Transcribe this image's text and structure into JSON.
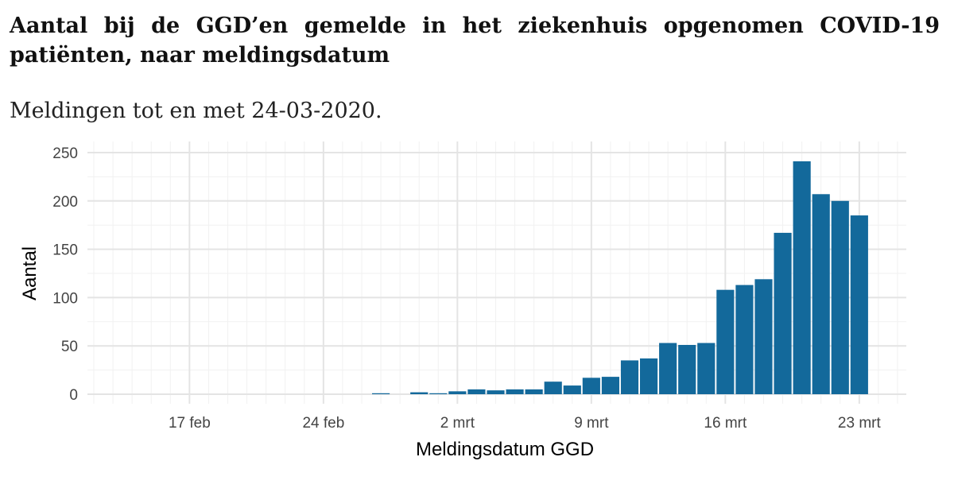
{
  "title": "Aantal bij de GGD’en gemelde in het ziekenhuis opgenomen COVID-19 patiënten, naar meldingsdatum",
  "subtitle": "Meldingen tot en met 24-03-2020.",
  "colors": {
    "bar": "#13699b",
    "grid_major": "#e4e4e4",
    "grid_minor": "#f1f1f1"
  },
  "chart_data": {
    "type": "bar",
    "title": "Aantal bij de GGD’en gemelde in het ziekenhuis opgenomen COVID-19 patiënten, naar meldingsdatum",
    "xlabel": "Meldingsdatum GGD",
    "ylabel": "Aantal",
    "ylim": [
      0,
      250
    ],
    "yticks": [
      0,
      50,
      100,
      150,
      200,
      250
    ],
    "xrange": [
      "2020-02-12",
      "2020-03-25"
    ],
    "xticks": [
      {
        "date": "2020-02-17",
        "label": "17 feb"
      },
      {
        "date": "2020-02-24",
        "label": "24 feb"
      },
      {
        "date": "2020-03-02",
        "label": "2 mrt"
      },
      {
        "date": "2020-03-09",
        "label": "9 mrt"
      },
      {
        "date": "2020-03-16",
        "label": "16 mrt"
      },
      {
        "date": "2020-03-23",
        "label": "23 mrt"
      }
    ],
    "categories": [
      "2020-02-27",
      "2020-02-28",
      "2020-02-29",
      "2020-03-01",
      "2020-03-02",
      "2020-03-03",
      "2020-03-04",
      "2020-03-05",
      "2020-03-06",
      "2020-03-07",
      "2020-03-08",
      "2020-03-09",
      "2020-03-10",
      "2020-03-11",
      "2020-03-12",
      "2020-03-13",
      "2020-03-14",
      "2020-03-15",
      "2020-03-16",
      "2020-03-17",
      "2020-03-18",
      "2020-03-19",
      "2020-03-20",
      "2020-03-21",
      "2020-03-22",
      "2020-03-23"
    ],
    "values": [
      1,
      0,
      2,
      1,
      3,
      5,
      4,
      5,
      5,
      13,
      9,
      17,
      18,
      35,
      37,
      53,
      51,
      53,
      108,
      113,
      119,
      167,
      241,
      207,
      200,
      185
    ],
    "grid": true,
    "legend": "none"
  }
}
